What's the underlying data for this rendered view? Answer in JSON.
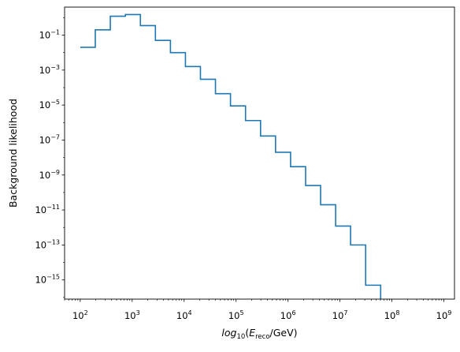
{
  "chart_data": {
    "type": "line",
    "step": "post",
    "title": "",
    "xlabel": {
      "main": "log",
      "main_sub": "10",
      "open": "(",
      "e": "E",
      "e_sub": "reco",
      "rest": "/GeV)"
    },
    "ylabel": "Background likelihood",
    "xscale": "log",
    "yscale": "log",
    "xlim": [
      50,
      1600000000.0
    ],
    "ylim": [
      8e-17,
      4
    ],
    "grid": false,
    "legend": "none",
    "x_ticks": [
      {
        "value": 100,
        "base": "10",
        "exp": "2"
      },
      {
        "value": 1000,
        "base": "10",
        "exp": "3"
      },
      {
        "value": 10000,
        "base": "10",
        "exp": "4"
      },
      {
        "value": 100000,
        "base": "10",
        "exp": "5"
      },
      {
        "value": 1000000,
        "base": "10",
        "exp": "6"
      },
      {
        "value": 10000000,
        "base": "10",
        "exp": "7"
      },
      {
        "value": 100000000,
        "base": "10",
        "exp": "8"
      },
      {
        "value": 1000000000,
        "base": "10",
        "exp": "9"
      }
    ],
    "y_ticks": [
      {
        "value": 0.1,
        "base": "10",
        "exp": "−1"
      },
      {
        "value": 0.001,
        "base": "10",
        "exp": "−3"
      },
      {
        "value": 1e-05,
        "base": "10",
        "exp": "−5"
      },
      {
        "value": 1e-07,
        "base": "10",
        "exp": "−7"
      },
      {
        "value": 1e-09,
        "base": "10",
        "exp": "−9"
      },
      {
        "value": 1e-11,
        "base": "10",
        "exp": "−11"
      },
      {
        "value": 1e-13,
        "base": "10",
        "exp": "−13"
      },
      {
        "value": 1e-15,
        "base": "10",
        "exp": "−15"
      }
    ],
    "series": [
      {
        "color": "#1f77b4",
        "x": [
          100,
          195,
          380,
          740,
          1440,
          2800,
          5450,
          10600,
          20600,
          40100,
          78000,
          152000,
          296000,
          575000,
          1120000,
          2180000,
          4240000,
          8250000,
          16000000,
          31200000,
          60700000
        ],
        "y": [
          0.02,
          0.2,
          1.2,
          1.5,
          0.35,
          0.05,
          0.01,
          0.0016,
          0.0003,
          4.5e-05,
          9e-06,
          1.3e-06,
          1.7e-07,
          2e-08,
          3e-09,
          2.5e-10,
          2e-11,
          1.2e-12,
          1e-13,
          5e-16,
          5e-17
        ]
      }
    ]
  }
}
